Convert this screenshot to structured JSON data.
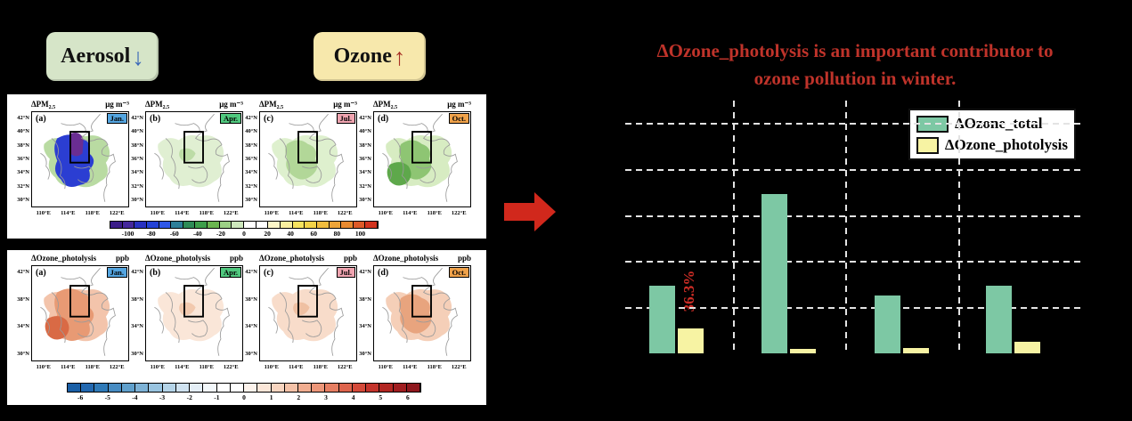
{
  "background": "#000000",
  "badges": {
    "aerosol": {
      "label": "Aerosol",
      "arrow": "↓",
      "bg": "#d6e5c8",
      "arrow_color": "#3a68b8"
    },
    "ozone": {
      "label": "Ozone",
      "arrow": "↑",
      "bg": "#f7e8ac",
      "arrow_color": "#a93226"
    }
  },
  "flow_arrow": {
    "color": "#d1281c"
  },
  "map_rows": [
    {
      "name": "delta-pm25",
      "title_main": "ΔPM",
      "title_sub": "2.5",
      "unit": "μg m⁻³",
      "y_ticks": [
        "42°N",
        "40°N",
        "38°N",
        "36°N",
        "34°N",
        "32°N",
        "30°N"
      ],
      "x_ticks": [
        "110°E",
        "114°E",
        "118°E",
        "122°E"
      ],
      "panels": [
        {
          "letter": "(a)",
          "month": "Jan.",
          "month_bg": "#54a5e0",
          "variant": "pm-jan"
        },
        {
          "letter": "(b)",
          "month": "Apr.",
          "month_bg": "#50c87e",
          "variant": "pm-apr"
        },
        {
          "letter": "(c)",
          "month": "Jul.",
          "month_bg": "#f0a4b0",
          "variant": "pm-jul"
        },
        {
          "letter": "(d)",
          "month": "Oct.",
          "month_bg": "#f0a24a",
          "variant": "pm-oct"
        }
      ],
      "colorbar": {
        "labels": [
          "-100",
          "-80",
          "-60",
          "-40",
          "-20",
          "0",
          "20",
          "40",
          "60",
          "80",
          "100"
        ],
        "colors": [
          "#3b1d88",
          "#45289c",
          "#2832c0",
          "#2342d6",
          "#2f58e8",
          "#2e7f99",
          "#2e8b57",
          "#3d9e4a",
          "#6ab54f",
          "#9ccf85",
          "#cde7bc",
          "#ffffff",
          "#ffffff",
          "#fcf6c8",
          "#f9ef9f",
          "#f6e35f",
          "#f3d248",
          "#f0bc3e",
          "#eda438",
          "#e88a30",
          "#dd5a28",
          "#d2331e"
        ]
      }
    },
    {
      "name": "delta-ozone-photolysis",
      "title_main": "ΔOzone_photolysis",
      "title_sub": "",
      "unit": "ppb",
      "y_ticks": [
        "42°N",
        "38°N",
        "34°N",
        "30°N"
      ],
      "x_ticks": [
        "110°E",
        "114°E",
        "118°E",
        "122°E"
      ],
      "panels": [
        {
          "letter": "(a)",
          "month": "Jan.",
          "month_bg": "#54a5e0",
          "variant": "o3-jan"
        },
        {
          "letter": "(b)",
          "month": "Apr.",
          "month_bg": "#50c87e",
          "variant": "o3-apr"
        },
        {
          "letter": "(c)",
          "month": "Jul.",
          "month_bg": "#f0a4b0",
          "variant": "o3-jul"
        },
        {
          "letter": "(d)",
          "month": "Oct.",
          "month_bg": "#f0a24a",
          "variant": "o3-oct"
        }
      ],
      "colorbar": {
        "labels": [
          "-6",
          "-5",
          "-4",
          "-3",
          "-2",
          "-1",
          "0",
          "1",
          "2",
          "3",
          "4",
          "5",
          "6"
        ],
        "colors": [
          "#1a5fa6",
          "#2268b0",
          "#2f7ab8",
          "#478cc2",
          "#60a0cc",
          "#7db2d6",
          "#99c4e0",
          "#b5d4e8",
          "#cfe2f0",
          "#e4eef6",
          "#f3f8fb",
          "#ffffff",
          "#ffffff",
          "#fdf3ec",
          "#fbe6d8",
          "#f8d5c0",
          "#f5c2a8",
          "#f1ad90",
          "#ec9679",
          "#e67e62",
          "#de644c",
          "#d44a3a",
          "#c4342c",
          "#b22622",
          "#a01d20",
          "#8f181e"
        ]
      }
    }
  ],
  "map_variant_colors": {
    "pm-jan": [
      "#b9dba2",
      "#2b3ed2",
      "#6a2d92"
    ],
    "pm-apr": [
      "#e0efd2",
      "#bcdca6"
    ],
    "pm-jul": [
      "#def0ce",
      "#b2d798"
    ],
    "pm-oct": [
      "#d7ecc2",
      "#8ec573",
      "#5ea84b"
    ],
    "o3-jan": [
      "#f3c4ab",
      "#e89a74",
      "#d96a45"
    ],
    "o3-apr": [
      "#fae6d8",
      "#f2c9ae"
    ],
    "o3-jul": [
      "#f8dcca",
      "#efc0a2"
    ],
    "o3-oct": [
      "#f5cfb8",
      "#e8a47e"
    ]
  },
  "right": {
    "title_line1": "ΔOzone_photolysis is an important contributor to",
    "title_line2": "ozone pollution in winter.",
    "title_color": "#bf332a"
  },
  "chart_data": {
    "type": "bar",
    "title": "ΔOzone_photolysis is an important contributor to ozone pollution in winter.",
    "categories": [
      "",
      "",
      "",
      ""
    ],
    "categories_note": "four bar groups; no category tick labels are shown in the figure",
    "series": [
      {
        "name": "ΔOzone_total",
        "color": "#7dc8a4",
        "values_gridline_units": [
          1.47,
          3.47,
          1.26,
          1.47
        ]
      },
      {
        "name": "ΔOzone_photolysis",
        "color": "#f7f3a3",
        "values_gridline_units": [
          0.54,
          0.1,
          0.12,
          0.25
        ]
      }
    ],
    "y_axis": {
      "tick_labels_visible": false,
      "unit": "gridline units (1 unit per dashed gridline)",
      "ylim_gridline_units": [
        0,
        5.6
      ]
    },
    "grid": {
      "horizontal_dashed_lines": 5,
      "vertical_dashed_lines": 3,
      "style": "white dashed on black"
    },
    "legend": {
      "position": "top-right",
      "entries": [
        "ΔOzone_total",
        "ΔOzone_photolysis"
      ]
    },
    "annotation": {
      "text": "36.3%",
      "color": "#cc2d26",
      "rotated_deg": -90,
      "attached_to": "group 1 ΔOzone_photolysis bar"
    }
  }
}
